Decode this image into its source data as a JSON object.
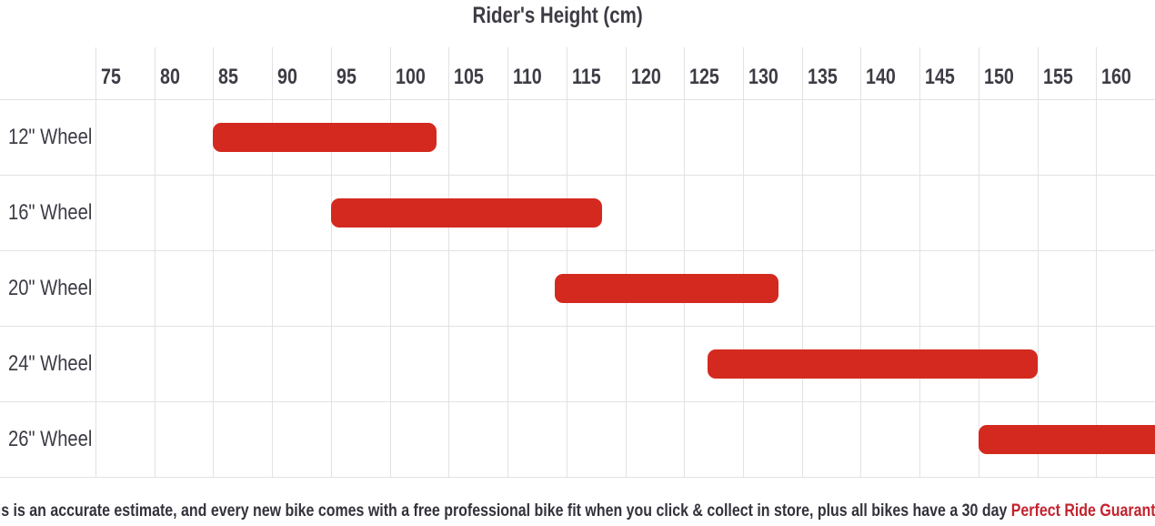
{
  "chart_data": {
    "type": "bar",
    "orientation": "horizontal",
    "title": "Rider's Height (cm)",
    "xlabel": "Rider's Height (cm)",
    "ylabel": "",
    "x_tick_labels": [
      "75",
      "80",
      "85",
      "90",
      "95",
      "100",
      "105",
      "110",
      "115",
      "120",
      "125",
      "130",
      "135",
      "140",
      "145",
      "150",
      "155",
      "160"
    ],
    "x_axis_min": 75,
    "x_axis_max": 165,
    "grid": true,
    "legend": false,
    "gridline_color": "#e2e2e2",
    "bar_color": "#d4291f",
    "rows": [
      {
        "label": "12\" Wheel",
        "min_cm": 85,
        "max_cm": 104,
        "clipped_right": false
      },
      {
        "label": "16\" Wheel",
        "min_cm": 95,
        "max_cm": 118,
        "clipped_right": false
      },
      {
        "label": "20\" Wheel",
        "min_cm": 114,
        "max_cm": 133,
        "clipped_right": false
      },
      {
        "label": "24\" Wheel",
        "min_cm": 127,
        "max_cm": 155,
        "clipped_right": false
      },
      {
        "label": "26\" Wheel",
        "min_cm": 150,
        "max_cm": 166,
        "clipped_right": true
      }
    ]
  },
  "footer": {
    "text": "This is an accurate estimate, and every new bike comes with a free professional bike fit when you click & collect in store, plus all bikes have a 30 day ",
    "link_text": "Perfect Ride Guarantee",
    "suffix": ".",
    "link_color": "#c2232e",
    "text_color": "#34323b"
  }
}
